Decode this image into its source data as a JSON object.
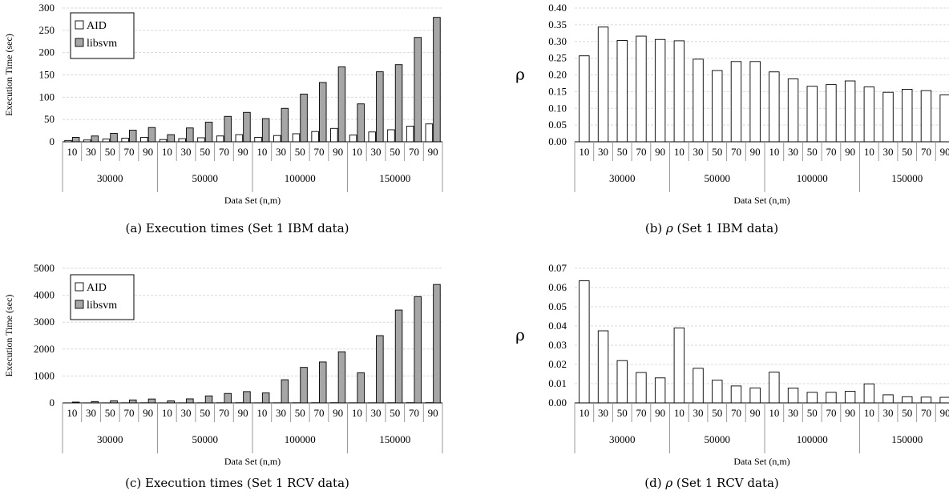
{
  "captions": {
    "a": "(a) Execution times (Set 1 IBM data)",
    "b_prefix": "(b) ",
    "b_symbol": "ρ",
    "b_suffix": " (Set 1 IBM data)",
    "c": "(c) Execution times (Set 1 RCV data)",
    "d_prefix": "(d) ",
    "d_symbol": "ρ",
    "d_suffix": " (Set 1 RCV data)"
  },
  "chart_data": [
    {
      "id": "a",
      "type": "bar",
      "ylabel": "Execution Time (sec)",
      "xlabel": "Data Set (n,m)",
      "ylim": [
        0,
        300
      ],
      "yticks": [
        "0",
        "50",
        "100",
        "150",
        "200",
        "250",
        "300"
      ],
      "grid": true,
      "legend": "top-left",
      "groups": [
        "30000",
        "50000",
        "100000",
        "150000"
      ],
      "categories": [
        "10",
        "30",
        "50",
        "70",
        "90",
        "10",
        "30",
        "50",
        "70",
        "90",
        "10",
        "30",
        "50",
        "70",
        "90",
        "10",
        "30",
        "50",
        "70",
        "90"
      ],
      "series": [
        {
          "name": "AID",
          "color": "#ffffff",
          "values": [
            3,
            4,
            6,
            8,
            10,
            5,
            7,
            9,
            13,
            16,
            10,
            14,
            18,
            23,
            30,
            15,
            22,
            27,
            35,
            40
          ]
        },
        {
          "name": "libsvm",
          "color": "#a6a6a6",
          "values": [
            10,
            13,
            19,
            26,
            32,
            16,
            31,
            44,
            57,
            66,
            52,
            75,
            107,
            133,
            168,
            85,
            157,
            173,
            234,
            279
          ]
        }
      ]
    },
    {
      "id": "b",
      "type": "bar",
      "ylabel": "ρ",
      "xlabel": "Data Set (n,m)",
      "ylim": [
        0,
        0.4
      ],
      "yticks": [
        "0.00",
        "0.05",
        "0.10",
        "0.15",
        "0.20",
        "0.25",
        "0.30",
        "0.35",
        "0.40"
      ],
      "grid": true,
      "groups": [
        "30000",
        "50000",
        "100000",
        "150000"
      ],
      "categories": [
        "10",
        "30",
        "50",
        "70",
        "90",
        "10",
        "30",
        "50",
        "70",
        "90",
        "10",
        "30",
        "50",
        "70",
        "90",
        "10",
        "30",
        "50",
        "70",
        "90"
      ],
      "series": [
        {
          "color": "#ffffff",
          "values": [
            0.257,
            0.343,
            0.303,
            0.316,
            0.306,
            0.302,
            0.247,
            0.213,
            0.24,
            0.24,
            0.209,
            0.188,
            0.166,
            0.171,
            0.182,
            0.164,
            0.148,
            0.157,
            0.153,
            0.14
          ]
        }
      ]
    },
    {
      "id": "c",
      "type": "bar",
      "ylabel": "Execution Time (sec)",
      "xlabel": "Data Set (n,m)",
      "ylim": [
        0,
        5000
      ],
      "yticks": [
        "0",
        "1000",
        "2000",
        "3000",
        "4000",
        "5000"
      ],
      "grid": true,
      "legend": "top-left",
      "groups": [
        "30000",
        "50000",
        "100000",
        "150000"
      ],
      "categories": [
        "10",
        "30",
        "50",
        "70",
        "90",
        "10",
        "30",
        "50",
        "70",
        "90",
        "10",
        "30",
        "50",
        "70",
        "90",
        "10",
        "30",
        "50",
        "70",
        "90"
      ],
      "series": [
        {
          "name": "AID",
          "color": "#ffffff",
          "values": [
            2,
            3,
            4,
            5,
            6,
            3,
            4,
            5,
            6,
            8,
            4,
            5,
            6,
            8,
            9,
            5,
            6,
            7,
            9,
            10
          ]
        },
        {
          "name": "libsvm",
          "color": "#a6a6a6",
          "values": [
            30,
            50,
            80,
            110,
            145,
            75,
            150,
            260,
            350,
            420,
            370,
            860,
            1320,
            1520,
            1900,
            1120,
            2500,
            3450,
            3950,
            4400
          ]
        }
      ]
    },
    {
      "id": "d",
      "type": "bar",
      "ylabel": "ρ",
      "xlabel": "Data Set (n,m)",
      "ylim": [
        0,
        0.07
      ],
      "yticks": [
        "0.00",
        "0.01",
        "0.02",
        "0.03",
        "0.04",
        "0.05",
        "0.06",
        "0.07"
      ],
      "grid": true,
      "groups": [
        "30000",
        "50000",
        "100000",
        "150000"
      ],
      "categories": [
        "10",
        "30",
        "50",
        "70",
        "90",
        "10",
        "30",
        "50",
        "70",
        "90",
        "10",
        "30",
        "50",
        "70",
        "90",
        "10",
        "30",
        "50",
        "70",
        "90"
      ],
      "series": [
        {
          "color": "#ffffff",
          "values": [
            0.0635,
            0.0375,
            0.022,
            0.0158,
            0.013,
            0.039,
            0.018,
            0.0118,
            0.0088,
            0.0078,
            0.016,
            0.0077,
            0.0055,
            0.0055,
            0.006,
            0.0099,
            0.0042,
            0.0032,
            0.003,
            0.0029
          ]
        }
      ]
    }
  ]
}
